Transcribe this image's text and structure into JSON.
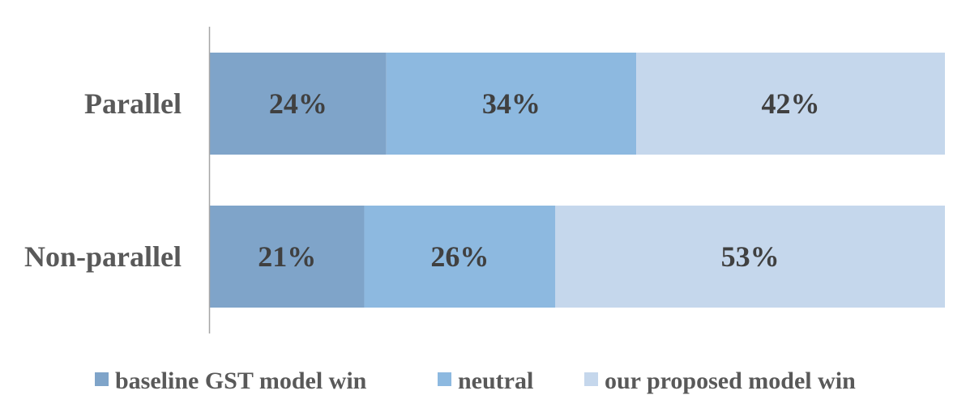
{
  "chart_data": {
    "type": "bar",
    "orientation": "horizontal",
    "stacked": true,
    "percent_stacked": true,
    "categories": [
      "Parallel",
      "Non-parallel"
    ],
    "series": [
      {
        "name": "baseline GST model win",
        "values": [
          24,
          21
        ],
        "labels": [
          "24%",
          "21%"
        ],
        "color": "#7fa4c9"
      },
      {
        "name": "neutral",
        "values": [
          34,
          26
        ],
        "labels": [
          "34%",
          "26%"
        ],
        "color": "#8db9e0"
      },
      {
        "name": "our proposed model win",
        "values": [
          42,
          53
        ],
        "labels": [
          "42%",
          "53%"
        ],
        "color": "#c5d7ec"
      }
    ],
    "xlim": [
      0,
      100
    ],
    "grid": false,
    "legend_position": "bottom",
    "axis_color": "#a6a6a6"
  }
}
